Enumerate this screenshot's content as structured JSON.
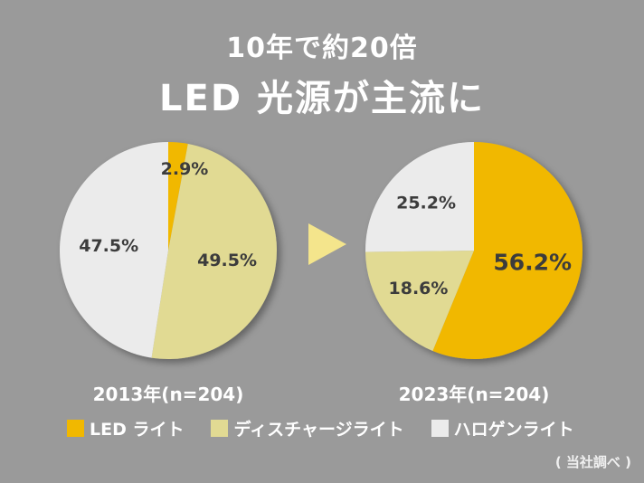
{
  "header": {
    "title_line1": "10年で約20倍",
    "title_line2": "LED 光源が主流に"
  },
  "colors": {
    "background": "#9a9a9a",
    "led": "#f1b800",
    "discharge": "#e1da93",
    "halogen": "#ebebeb",
    "arrow": "#f4e58c",
    "label_text": "#3c3c3c"
  },
  "legend": [
    {
      "key": "led",
      "label": "LED ライト"
    },
    {
      "key": "discharge",
      "label": "ディスチャージライト"
    },
    {
      "key": "halogen",
      "label": "ハロゲンライト"
    }
  ],
  "source_note": "( 当社調べ )",
  "arrow_icon": "right-triangle-arrow",
  "chart_data": [
    {
      "type": "pie",
      "title": "2013年(n=204)",
      "categories": [
        "LED ライト",
        "ディスチャージライト",
        "ハロゲンライト"
      ],
      "keys": [
        "led",
        "discharge",
        "halogen"
      ],
      "values": [
        2.9,
        49.5,
        47.5
      ],
      "labels": [
        "2.9%",
        "49.5%",
        "47.5%"
      ],
      "start": "12 o'clock",
      "direction": "clockwise"
    },
    {
      "type": "pie",
      "title": "2023年(n=204)",
      "categories": [
        "LED ライト",
        "ディスチャージライト",
        "ハロゲンライト"
      ],
      "keys": [
        "led",
        "discharge",
        "halogen"
      ],
      "values": [
        56.2,
        18.6,
        25.2
      ],
      "labels": [
        "56.2%",
        "18.6%",
        "25.2%"
      ],
      "start": "12 o'clock",
      "direction": "clockwise"
    }
  ]
}
